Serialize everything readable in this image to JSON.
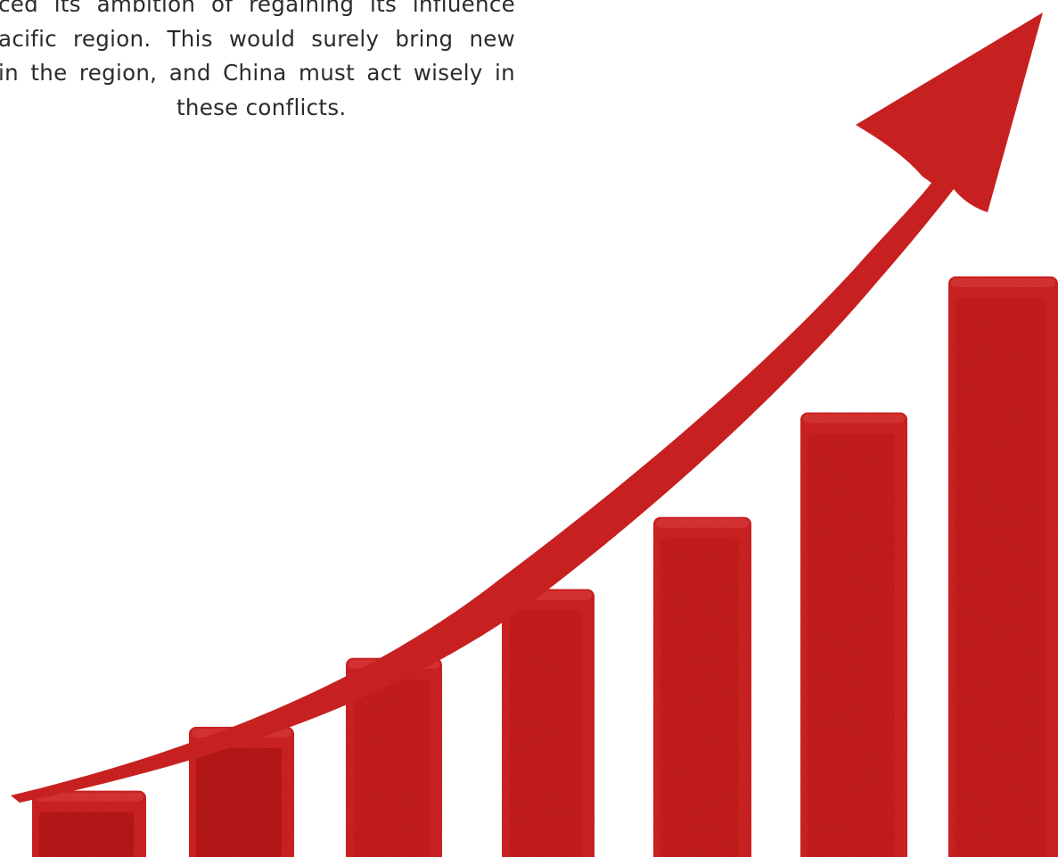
{
  "document": {
    "paragraph_lines": [
      "ced its ambition of regaining its influence",
      "acific region. This would surely bring new",
      "in the region, and China must act wisely in",
      "these conflicts."
    ]
  },
  "illustration": {
    "bar_count": 7,
    "relative_heights": [
      0.08,
      0.157,
      0.24,
      0.323,
      0.41,
      0.536,
      0.7
    ],
    "colors": {
      "primary": "#d92727",
      "shade": "#b81d1d",
      "top": "#e84040"
    }
  }
}
